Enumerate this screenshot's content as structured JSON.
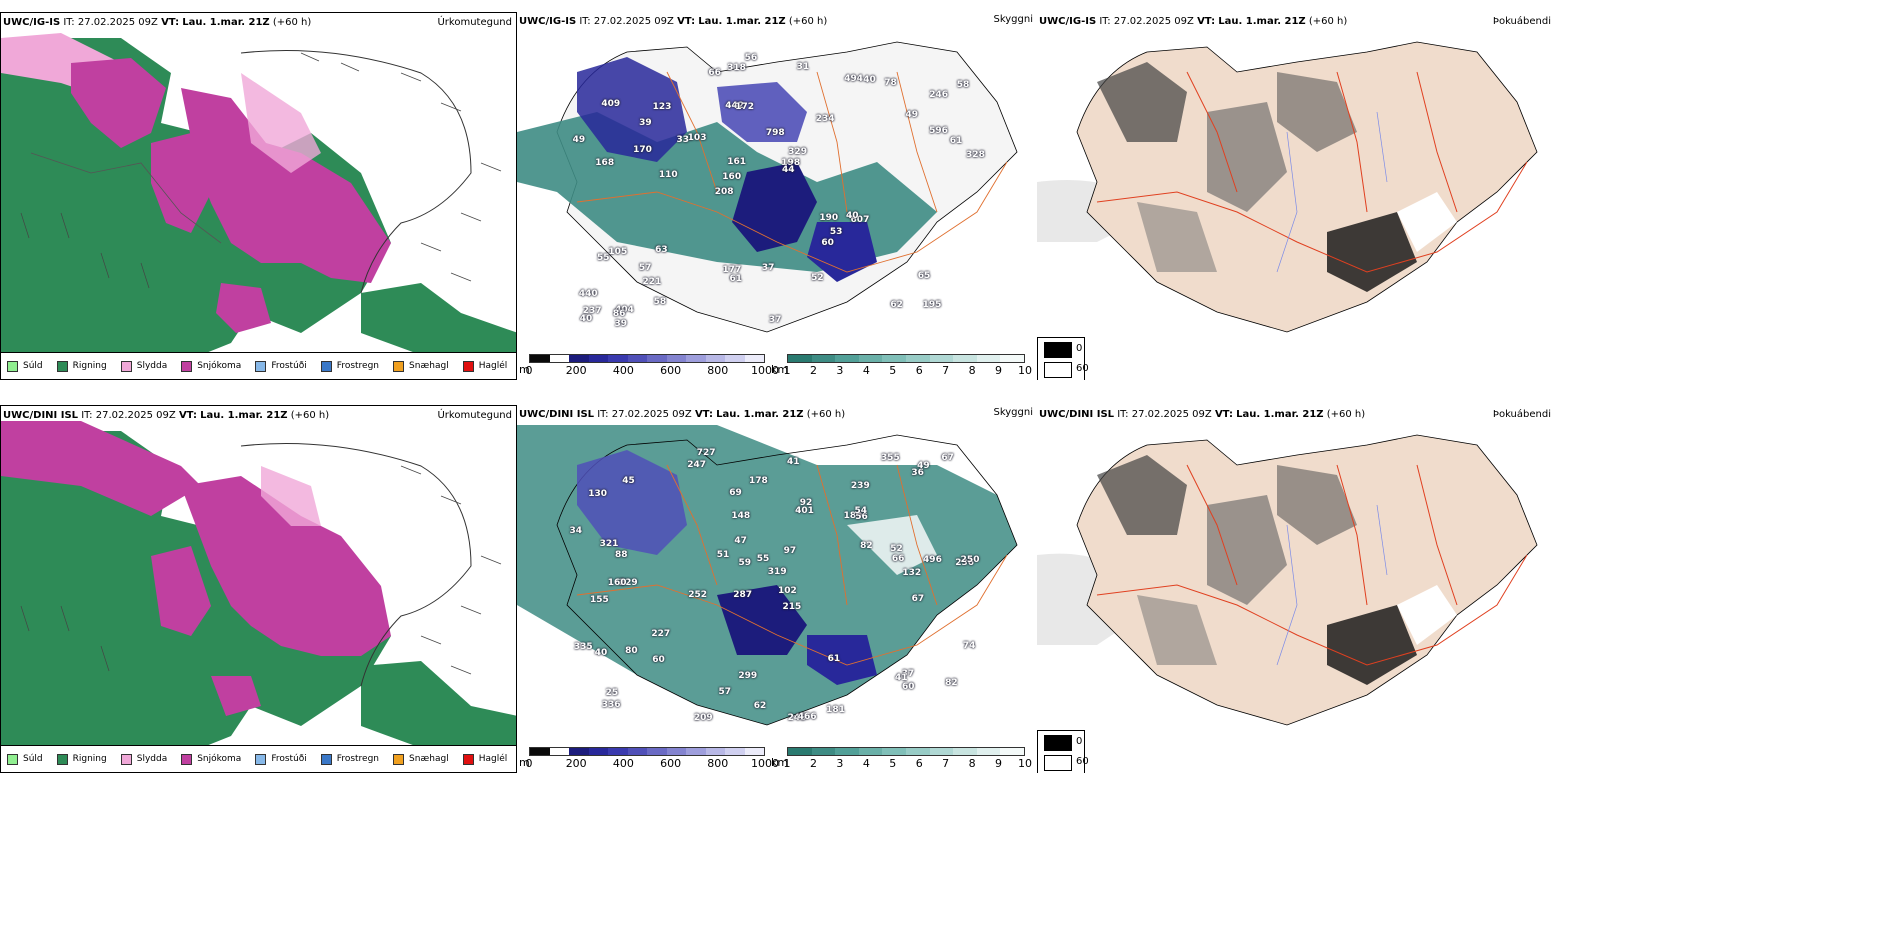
{
  "panels": {
    "top_left": {
      "model": "UWC/IG-IS",
      "it_label": "IT:",
      "it_value": "27.02.2025 09Z",
      "vt_label": "VT:",
      "vt_value": "Lau. 1.mar. 21Z",
      "lead": "(+60 h)",
      "product": "Úrkomutegund"
    },
    "top_mid": {
      "model": "UWC/IG-IS",
      "it_label": "IT:",
      "it_value": "27.02.2025 09Z",
      "vt_label": "VT:",
      "vt_value": "Lau. 1.mar. 21Z",
      "lead": "(+60 h)",
      "product": "Skyggni"
    },
    "top_right": {
      "model": "UWC/IG-IS",
      "it_label": "IT:",
      "it_value": "27.02.2025 09Z",
      "vt_label": "VT:",
      "vt_value": "Lau. 1.mar. 21Z",
      "lead": "(+60 h)",
      "product": "Þokuábendi"
    },
    "bot_left": {
      "model": "UWC/DINI ISL",
      "it_label": "IT:",
      "it_value": "27.02.2025 09Z",
      "vt_label": "VT:",
      "vt_value": "Lau. 1.mar. 21Z",
      "lead": "(+60 h)",
      "product": "Úrkomutegund"
    },
    "bot_mid": {
      "model": "UWC/DINI ISL",
      "it_label": "IT:",
      "it_value": "27.02.2025 09Z",
      "vt_label": "VT:",
      "vt_value": "Lau. 1.mar. 21Z",
      "lead": "(+60 h)",
      "product": "Skyggni"
    },
    "bot_right": {
      "model": "UWC/DINI ISL",
      "it_label": "IT:",
      "it_value": "27.02.2025 09Z",
      "vt_label": "VT:",
      "vt_value": "Lau. 1.mar. 21Z",
      "lead": "(+60 h)",
      "product": "Þokuábendi"
    }
  },
  "precip_legend": [
    {
      "label": "Súld",
      "color": "#90ee90"
    },
    {
      "label": "Rigning",
      "color": "#2e8b57"
    },
    {
      "label": "Slydda",
      "color": "#f0a8d8"
    },
    {
      "label": "Snjókoma",
      "color": "#c040a0"
    },
    {
      "label": "Frostúði",
      "color": "#87b8e8"
    },
    {
      "label": "Frostregn",
      "color": "#3a78c8"
    },
    {
      "label": "Snæhagl",
      "color": "#f0a020"
    },
    {
      "label": "Haglél",
      "color": "#e01010"
    }
  ],
  "vis_m_scale": {
    "unit": "m",
    "ticks": [
      "0",
      "200",
      "400",
      "600",
      "800",
      "1000"
    ],
    "colors": [
      "#0a0a0a",
      "#ffffff",
      "#1c1c7c",
      "#28289a",
      "#3a3aae",
      "#5050b8",
      "#6a6ac4",
      "#8484d0",
      "#9e9edc",
      "#b8b8e6",
      "#d0d0f0",
      "#ececfa"
    ]
  },
  "vis_km_scale": {
    "unit": "km",
    "ticks": [
      "1",
      "2",
      "3",
      "4",
      "5",
      "6",
      "7",
      "8",
      "9",
      "10"
    ],
    "colors": [
      "#2a7a70",
      "#3e8c84",
      "#52a098",
      "#6ab0a8",
      "#80bfb8",
      "#98ccc6",
      "#b0d8d4",
      "#c8e4e0",
      "#e0f0ee",
      "#f4faf9"
    ]
  },
  "fog_legend": {
    "values": [
      "0",
      "60"
    ],
    "colors": [
      "#000000",
      "#ffffff"
    ]
  },
  "vis_labels_top": [
    "195",
    "168",
    "246",
    "208",
    "234",
    "404",
    "442",
    "798",
    "105",
    "103",
    "440",
    "221",
    "172",
    "329",
    "607",
    "409",
    "318",
    "328",
    "190",
    "596",
    "160",
    "177",
    "161",
    "123",
    "494",
    "63",
    "62",
    "65",
    "40",
    "37",
    "33",
    "170",
    "60",
    "58",
    "61",
    "198",
    "237",
    "61",
    "44",
    "55",
    "49",
    "58",
    "53",
    "52",
    "57",
    "39",
    "40",
    "37",
    "78",
    "56",
    "110",
    "49",
    "39",
    "40",
    "86",
    "31",
    "66"
  ],
  "vis_labels_bot": [
    "727",
    "239",
    "236",
    "287",
    "215",
    "229",
    "130",
    "189",
    "155",
    "401",
    "319",
    "336",
    "247",
    "252",
    "245",
    "466",
    "299",
    "355",
    "82",
    "227",
    "88",
    "160",
    "250",
    "496",
    "335",
    "321",
    "59",
    "66",
    "37",
    "40",
    "41",
    "92",
    "80",
    "51",
    "61",
    "74",
    "52",
    "57",
    "67",
    "178",
    "25",
    "209",
    "181",
    "45",
    "62",
    "56",
    "60",
    "54",
    "34",
    "102",
    "69",
    "132",
    "97",
    "36",
    "41",
    "60",
    "47",
    "55",
    "49",
    "148",
    "82",
    "67"
  ]
}
